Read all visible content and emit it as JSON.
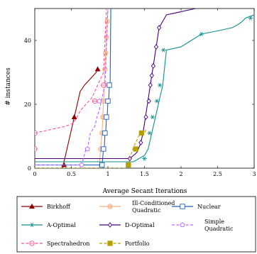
{
  "chart_data": {
    "type": "line",
    "title": "",
    "xlabel": "Average Secant Iterations",
    "ylabel": "# instances",
    "xlim": [
      0,
      3
    ],
    "ylim": [
      0,
      50
    ],
    "xticks": [
      "0",
      "0.5",
      "1",
      "1.5",
      "2",
      "2.5",
      "3"
    ],
    "yticks": [
      "0",
      "20",
      "40"
    ],
    "legend_position": "bottom",
    "series": [
      {
        "name": "Birkhoff",
        "color": "#8b0000",
        "dash": "solid",
        "marker": "triangle",
        "x": [
          0.38,
          0.4,
          0.42,
          0.44,
          0.46,
          0.48,
          0.5,
          0.52,
          0.54,
          0.56,
          0.58,
          0.6,
          0.62,
          0.65,
          0.68,
          0.72,
          0.76,
          0.8,
          0.84,
          0.86
        ],
        "y": [
          0,
          2,
          4,
          6,
          8,
          10,
          12,
          14,
          16,
          18,
          20,
          22,
          24,
          25,
          26,
          27,
          28,
          29,
          30,
          31
        ],
        "markers_at": [
          [
            0.4,
            1
          ],
          [
            0.54,
            16
          ],
          [
            0.86,
            31
          ]
        ]
      },
      {
        "name": "Ill-Conditioned Quadratic",
        "color": "#f4b183",
        "dash": "solid",
        "marker": "circle",
        "x": [
          0.88,
          0.9,
          0.92,
          0.93,
          0.94,
          0.95,
          0.96,
          0.97,
          0.98,
          0.99,
          1.0
        ],
        "y": [
          0,
          6,
          11,
          16,
          21,
          26,
          31,
          36,
          41,
          46,
          50
        ],
        "markers_at": [
          [
            0.9,
            6
          ],
          [
            0.92,
            11
          ],
          [
            0.93,
            16
          ],
          [
            0.94,
            21
          ],
          [
            0.95,
            26
          ],
          [
            0.96,
            31
          ],
          [
            0.97,
            36
          ],
          [
            0.98,
            41
          ],
          [
            0.99,
            46
          ]
        ]
      },
      {
        "name": "Nuclear",
        "color": "#1f5fbf",
        "dash": "solid",
        "marker": "square",
        "x": [
          0.0,
          0.9,
          0.92,
          0.94,
          0.95,
          0.96,
          0.97,
          0.98,
          0.99,
          1.0,
          1.01,
          1.02,
          1.03,
          1.04
        ],
        "y": [
          1,
          1,
          1,
          6,
          6,
          11,
          11,
          16,
          16,
          21,
          21,
          26,
          26,
          50
        ],
        "markers_at": [
          [
            0.92,
            1
          ],
          [
            0.94,
            6
          ],
          [
            0.96,
            11
          ],
          [
            0.98,
            16
          ],
          [
            1.0,
            21
          ],
          [
            1.02,
            26
          ]
        ]
      },
      {
        "name": "A-Optimal",
        "color": "#0f8f8f",
        "dash": "solid",
        "marker": "star",
        "x": [
          0.0,
          1.35,
          1.5,
          1.55,
          1.57,
          1.59,
          1.61,
          1.63,
          1.65,
          1.67,
          1.69,
          1.71,
          1.73,
          1.75,
          1.8,
          2.0,
          2.28,
          2.5,
          2.7,
          2.78,
          2.84,
          2.88,
          3.0
        ],
        "y": [
          2,
          2,
          4,
          6,
          8,
          10,
          12,
          14,
          16,
          18,
          20,
          22,
          24,
          26,
          37,
          38,
          42,
          43,
          44,
          45,
          46,
          47,
          48
        ],
        "markers_at": [
          [
            1.5,
            3
          ],
          [
            1.57,
            11
          ],
          [
            1.61,
            16
          ],
          [
            1.67,
            21
          ],
          [
            1.71,
            26
          ],
          [
            1.76,
            37
          ],
          [
            2.28,
            42
          ],
          [
            2.95,
            47
          ]
        ]
      },
      {
        "name": "D-Optimal",
        "color": "#4b0082",
        "dash": "solid",
        "marker": "diamond",
        "x": [
          0.0,
          1.3,
          1.4,
          1.45,
          1.48,
          1.5,
          1.52,
          1.54,
          1.56,
          1.58,
          1.6,
          1.62,
          1.64,
          1.66,
          1.68,
          1.7,
          1.8,
          2.2
        ],
        "y": [
          3,
          3,
          5,
          8,
          11,
          14,
          17,
          20,
          23,
          26,
          29,
          32,
          35,
          38,
          41,
          44,
          48,
          50
        ],
        "markers_at": [
          [
            1.3,
            3
          ],
          [
            1.45,
            8
          ],
          [
            1.52,
            16
          ],
          [
            1.56,
            21
          ],
          [
            1.58,
            26
          ],
          [
            1.6,
            29
          ],
          [
            1.62,
            32
          ],
          [
            1.66,
            38
          ],
          [
            1.7,
            44
          ]
        ]
      },
      {
        "name": "Simple Quadratic",
        "color": "#b366ff",
        "dash": "dashed",
        "marker": "pentagon",
        "x": [
          0.0,
          0.64,
          0.7,
          0.72,
          0.76,
          0.82,
          0.85,
          0.88,
          0.92,
          0.96,
          1.0
        ],
        "y": [
          1,
          1,
          6,
          6,
          11,
          13,
          16,
          18,
          22,
          26,
          50
        ],
        "markers_at": [
          [
            0.64,
            1
          ],
          [
            0.72,
            6
          ],
          [
            0.88,
            21
          ]
        ]
      },
      {
        "name": "Spectrahedron",
        "color": "#ff4d94",
        "dash": "dashed",
        "marker": "circle-plus",
        "x": [
          0.0,
          0.2,
          0.4,
          0.52,
          0.58,
          0.62,
          0.66,
          0.7,
          0.74,
          0.78,
          0.82,
          0.86,
          0.9,
          0.94,
          0.98
        ],
        "y": [
          11,
          12,
          13,
          14,
          16,
          18,
          19,
          20,
          21,
          22,
          24,
          26,
          28,
          30,
          50
        ],
        "markers_at": [
          [
            0.0,
            11
          ],
          [
            0.0,
            6
          ],
          [
            0.82,
            21
          ],
          [
            0.94,
            26
          ]
        ]
      },
      {
        "name": "Portfolio",
        "color": "#b5a000",
        "dash": "dashed",
        "marker": "square-filled",
        "x": [
          0.0,
          1.25,
          1.28,
          1.3,
          1.34,
          1.38,
          1.42,
          1.46,
          1.5,
          1.52
        ],
        "y": [
          0,
          0,
          1,
          3,
          6,
          8,
          10,
          11,
          11,
          12
        ],
        "markers_at": [
          [
            1.28,
            1
          ],
          [
            1.38,
            6
          ],
          [
            1.46,
            11
          ]
        ]
      }
    ],
    "legend": [
      {
        "label": "Birkhoff"
      },
      {
        "label": "Ill-Conditioned Quadratic",
        "line1": "Ill-Conditioned",
        "line2": "Quadratic"
      },
      {
        "label": "Nuclear"
      },
      {
        "label": "A-Optimal"
      },
      {
        "label": "D-Optimal"
      },
      {
        "label": "Simple Quadratic",
        "line1": "Simple",
        "line2": "Quadratic"
      },
      {
        "label": "Spectrahedron"
      },
      {
        "label": "Portfolio"
      }
    ]
  }
}
